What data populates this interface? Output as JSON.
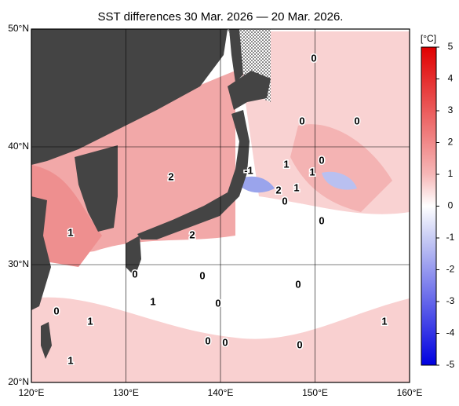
{
  "map": {
    "title": "SST differences 30 Mar. 2026 — 20 Mar. 2026.",
    "xlim": [
      120,
      160
    ],
    "ylim": [
      20,
      50
    ],
    "xticks": [
      {
        "value": 120,
        "label": "120°E"
      },
      {
        "value": 130,
        "label": "130°E"
      },
      {
        "value": 140,
        "label": "140°E"
      },
      {
        "value": 150,
        "label": "150°E"
      },
      {
        "value": 160,
        "label": "160°E"
      }
    ],
    "yticks": [
      {
        "value": 20,
        "label": "20°N"
      },
      {
        "value": 30,
        "label": "30°N"
      },
      {
        "value": 40,
        "label": "40°N"
      },
      {
        "value": 50,
        "label": "50°N"
      }
    ],
    "grid": true,
    "colorbar": {
      "unit": "[°C]",
      "range": [
        -5,
        5
      ],
      "ticks": [
        5,
        4,
        3,
        2,
        1,
        0,
        -1,
        -2,
        -3,
        -4,
        -5
      ]
    },
    "contour_labels": [
      "0",
      "0",
      "0",
      "0",
      "2",
      "1",
      "-1",
      "2",
      "1",
      "1",
      "2",
      "0",
      "0",
      "1",
      "0",
      "0",
      "0",
      "1",
      "0",
      "1",
      "0",
      "0",
      "0",
      "0",
      "1",
      "1"
    ]
  }
}
